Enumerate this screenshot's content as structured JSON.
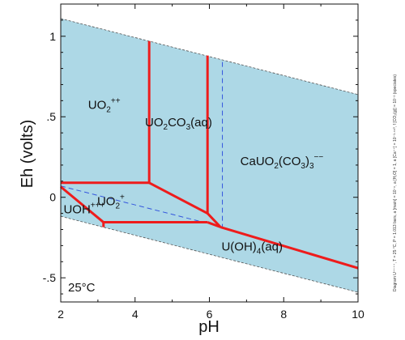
{
  "chart_data": {
    "type": "phase-diagram",
    "xlabel": "pH",
    "ylabel": "Eh (volts)",
    "xlim": [
      2,
      10
    ],
    "ylim": [
      -0.65,
      1.2
    ],
    "x_ticks": [
      2,
      4,
      6,
      8,
      10
    ],
    "x_tick_labels": [
      "2",
      "4",
      "6",
      "8",
      "10"
    ],
    "y_ticks": [
      -0.5,
      0,
      0.5,
      1
    ],
    "y_tick_labels": [
      "-.5",
      "0",
      ".5",
      "1"
    ],
    "temperature_label": "25°C",
    "side_note": "Diagram U⁺⁺⁺⁺, T = 25 °C, P = 1.013 bars, a [main] = 10⁻⁶, a [H₂O] = 1, a [Ca⁺⁺] = 10⁻³·⁴⁸⁰, f [CO₂(g)] = 10⁻³ (speciates)",
    "fill_color": "#add8e6",
    "boundary_color": "#ee1c1c",
    "water_limit_color": "#555555",
    "dashed_boundary_color": "#3355dd",
    "water_limits": [
      {
        "name": "upper",
        "points": [
          [
            2,
            1.11
          ],
          [
            10,
            0.638
          ]
        ]
      },
      {
        "name": "lower",
        "points": [
          [
            2,
            -0.118
          ],
          [
            10,
            -0.59
          ]
        ]
      }
    ],
    "boundaries": [
      {
        "name": "UO2++/UO2CO3 vertical",
        "points": [
          [
            4.38,
            0.97
          ],
          [
            4.38,
            0.09
          ]
        ]
      },
      {
        "name": "UO2++/UO2+ top",
        "points": [
          [
            2,
            0.09
          ],
          [
            4.38,
            0.09
          ]
        ]
      },
      {
        "name": "UO2CO3/CaUO2(CO3)3 vertical",
        "points": [
          [
            5.95,
            0.88
          ],
          [
            5.95,
            -0.1
          ]
        ]
      },
      {
        "name": "UO2+/UO2CO3 diagonal",
        "points": [
          [
            4.38,
            0.09
          ],
          [
            5.95,
            -0.1
          ]
        ]
      },
      {
        "name": "UO2+/U(OH)4 bottom",
        "points": [
          [
            3.15,
            -0.155
          ],
          [
            5.95,
            -0.155
          ]
        ]
      },
      {
        "name": "UOH+++/UO2+ diagonal",
        "points": [
          [
            2,
            0.065
          ],
          [
            3.15,
            -0.155
          ]
        ]
      },
      {
        "name": "UOH+++/U(OH)4 short",
        "points": [
          [
            3.15,
            -0.155
          ],
          [
            3.15,
            -0.185
          ]
        ]
      },
      {
        "name": "CaUO2(CO3)3/U(OH)4 connector",
        "points": [
          [
            5.95,
            -0.1
          ],
          [
            6.3,
            -0.185
          ]
        ]
      },
      {
        "name": "UO2+/U(OH)4 connector",
        "points": [
          [
            5.95,
            -0.155
          ],
          [
            6.3,
            -0.185
          ]
        ]
      },
      {
        "name": "CaUO2(CO3)3/U(OH)4 sloped",
        "points": [
          [
            6.3,
            -0.185
          ],
          [
            10,
            -0.44
          ]
        ]
      }
    ],
    "dashed_boundaries": [
      {
        "name": "metastable vertical",
        "points": [
          [
            6.35,
            0.84
          ],
          [
            6.35,
            -0.185
          ]
        ]
      },
      {
        "name": "metastable diagonal",
        "points": [
          [
            2,
            0.07
          ],
          [
            6.35,
            -0.185
          ]
        ]
      }
    ],
    "field_labels": [
      {
        "base": "UO",
        "sub": "2",
        "sup": "++",
        "tail": "",
        "tailsub": "",
        "tailsup": "",
        "at": [
          3.17,
          0.55
        ]
      },
      {
        "base": "UO",
        "sub": "2",
        "sup": "",
        "tail": "CO",
        "tailsub": "3",
        "tailsup": "",
        "suffix": "(aq)",
        "at": [
          5.17,
          0.44
        ]
      },
      {
        "base": "CaUO",
        "sub": "2",
        "sup": "",
        "tail": "(CO",
        "tailsub": "3",
        "tailsup": "",
        "suffix": ")",
        "suffixsub": "3",
        "suffixsup": "−−",
        "at": [
          7.95,
          0.2
        ]
      },
      {
        "base": "UO",
        "sub": "2",
        "sup": "+",
        "tail": "",
        "tailsub": "",
        "tailsup": "",
        "at": [
          3.35,
          -0.05
        ]
      },
      {
        "base": "UOH",
        "sub": "",
        "sup": "+++",
        "tail": "",
        "tailsub": "",
        "tailsup": "",
        "at": [
          2.63,
          -0.1
        ]
      },
      {
        "base": "U(OH)",
        "sub": "4",
        "sup": "",
        "tail": "(aq)",
        "tailsub": "",
        "tailsup": "",
        "at": [
          7.15,
          -0.33
        ]
      }
    ]
  }
}
